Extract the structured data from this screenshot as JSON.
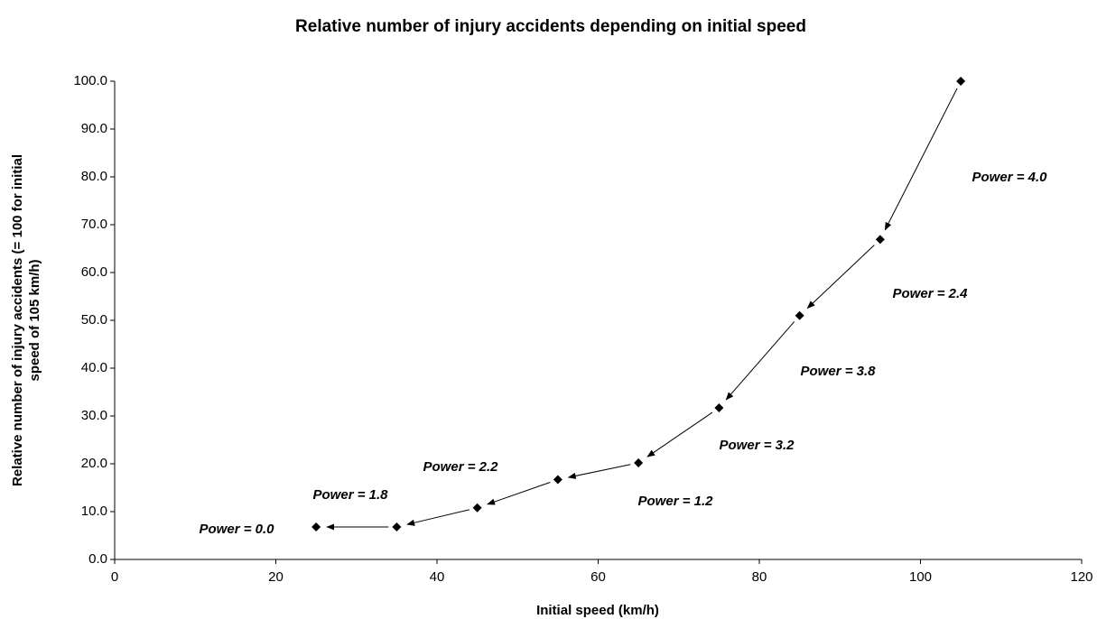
{
  "chart_data": {
    "type": "scatter",
    "title": "Relative number of injury accidents depending on initial speed",
    "x_label": "Initial speed (km/h)",
    "y_label": [
      "Relative number of injury accidents (= 100 for initial",
      "speed of 105 km/h)"
    ],
    "x": [
      25,
      35,
      45,
      55,
      65,
      75,
      85,
      95,
      105
    ],
    "values": [
      6.8,
      6.8,
      10.8,
      16.7,
      20.2,
      31.7,
      51.0,
      66.9,
      100.0
    ],
    "color": "#000000",
    "xlim": [
      0,
      120
    ],
    "xticks": [
      0,
      20,
      40,
      60,
      80,
      100,
      120
    ],
    "ylim": [
      0,
      100
    ],
    "yticks": [
      {
        "value": 0,
        "label": "0.0"
      },
      {
        "value": 10,
        "label": "10.0"
      },
      {
        "value": 20,
        "label": "20.0"
      },
      {
        "value": 30,
        "label": "30.0"
      },
      {
        "value": 40,
        "label": "40.0"
      },
      {
        "value": 50,
        "label": "50.0"
      },
      {
        "value": 60,
        "label": "60.0"
      },
      {
        "value": 70,
        "label": "70.0"
      },
      {
        "value": 80,
        "label": "80.0"
      },
      {
        "value": 90,
        "label": "90.0"
      },
      {
        "value": 100,
        "label": "100.0"
      }
    ],
    "annotations": [
      "Power = 0.0",
      "Power = 1.8",
      "Power = 2.2",
      "Power = 1.2",
      "Power = 3.2",
      "Power = 3.8",
      "Power = 2.4",
      "Power = 4.0"
    ]
  }
}
